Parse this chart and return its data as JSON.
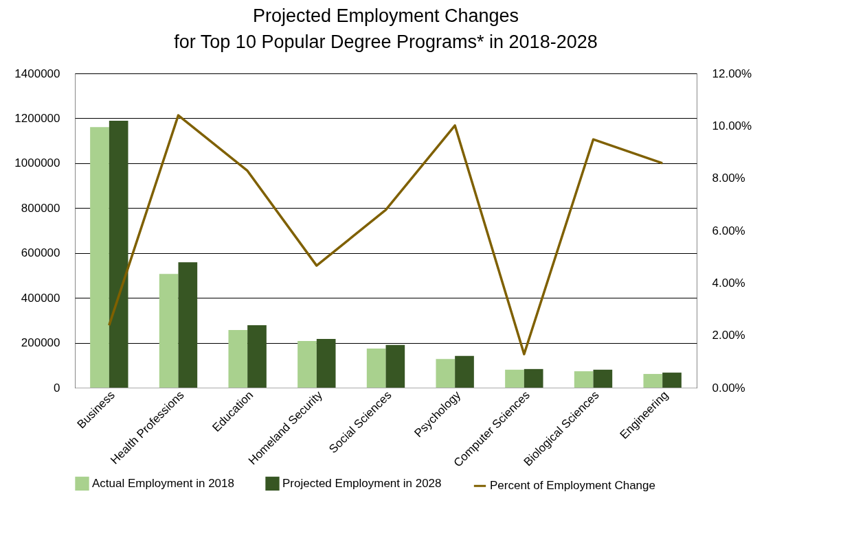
{
  "chart_data": {
    "type": "bar",
    "title": "Projected Employment Changes\nfor Top 10 Popular Degree Programs* in 2018-2028",
    "categories": [
      "Business",
      "Health Professions",
      "Education",
      "Homeland Security",
      "Social Sciences",
      "Psychology",
      "Computer Sciences",
      "Biological Sciences",
      "Engineering"
    ],
    "series": [
      {
        "name": "Actual Employment in 2018",
        "color": "#a9d18e",
        "values": [
          1161000,
          507000,
          257000,
          208000,
          174000,
          128000,
          80000,
          73000,
          61000
        ]
      },
      {
        "name": "Projected Employment in 2028",
        "color": "#375623",
        "values": [
          1189000,
          559000,
          278000,
          217000,
          190000,
          141000,
          83000,
          80000,
          67000
        ]
      },
      {
        "name": "Percent of Employment Change",
        "type": "line",
        "axis": "y2",
        "color": "#7f6000",
        "values": [
          2.38,
          10.4,
          8.28,
          4.66,
          6.79,
          10.01,
          1.28,
          9.48,
          8.57
        ]
      }
    ],
    "ylim": [
      0,
      1400000
    ],
    "yticks": [
      0,
      200000,
      400000,
      600000,
      800000,
      1000000,
      1200000,
      1400000
    ],
    "y2lim": [
      0,
      12
    ],
    "y2ticks": [
      {
        "value": 0,
        "label": "0.00%"
      },
      {
        "value": 2,
        "label": "2.00%"
      },
      {
        "value": 4,
        "label": "4.00%"
      },
      {
        "value": 6,
        "label": "6.00%"
      },
      {
        "value": 8,
        "label": "8.00%"
      },
      {
        "value": 10,
        "label": "10.00%"
      },
      {
        "value": 12,
        "label": "12.00%"
      }
    ],
    "grid": "y",
    "legend": "bottom",
    "marker": "none",
    "line_style": "solid"
  }
}
